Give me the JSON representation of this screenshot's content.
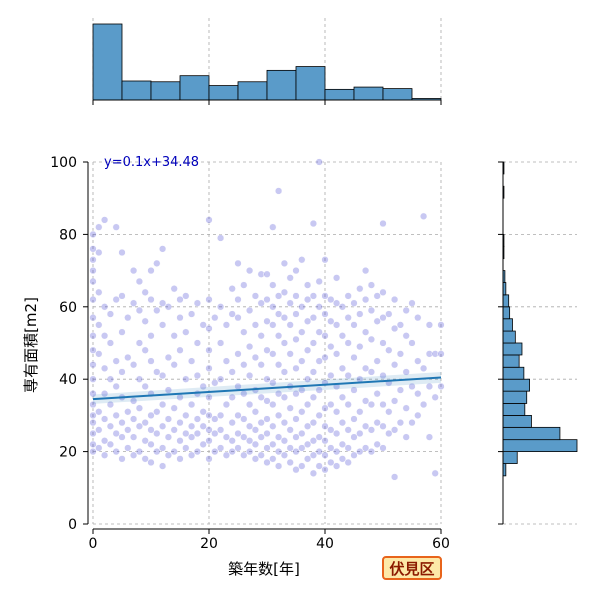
{
  "chart_data": {
    "type": "scatter",
    "title": "",
    "xlabel": "築年数[年]",
    "ylabel": "専有面積[m2]",
    "xlim": [
      -1,
      60
    ],
    "ylim": [
      0,
      100
    ],
    "xticks": [
      0,
      20,
      40,
      60
    ],
    "yticks": [
      0,
      20,
      40,
      60,
      80,
      100
    ],
    "grid": true,
    "annotation": "y=0.1x+34.48",
    "regression": {
      "slope": 0.1,
      "intercept": 34.48
    },
    "scatter_color": "#3a3ad0",
    "line_color": "#1f77b4",
    "hist_color": "#5a9bc9",
    "marginal_x_hist": {
      "bin_edges": [
        0,
        5,
        10,
        15,
        20,
        25,
        30,
        35,
        40,
        45,
        50,
        55,
        60
      ],
      "counts": [
        100,
        25,
        24,
        32,
        19,
        24,
        39,
        44,
        14,
        17,
        15,
        2
      ]
    },
    "marginal_y_hist": {
      "bin_edges": [
        0,
        3.3,
        6.7,
        10,
        13.3,
        16.7,
        20,
        23.3,
        26.7,
        30,
        33.3,
        36.7,
        40,
        43.3,
        46.7,
        50,
        53.3,
        56.7,
        60,
        63.3,
        66.7,
        70,
        73.3,
        76.7,
        80,
        83.3,
        86.7,
        90,
        93.3,
        96.7,
        100
      ],
      "counts": [
        0,
        0,
        0,
        0,
        3,
        15,
        78,
        60,
        30,
        23,
        25,
        28,
        22,
        17,
        20,
        13,
        10,
        7,
        6,
        3,
        2,
        0,
        1,
        1,
        0,
        0,
        0,
        1,
        0,
        1
      ]
    },
    "points": [
      [
        0,
        20
      ],
      [
        0,
        22
      ],
      [
        0,
        25
      ],
      [
        0,
        28
      ],
      [
        0,
        30
      ],
      [
        0,
        33
      ],
      [
        0,
        36
      ],
      [
        0,
        40
      ],
      [
        0,
        44
      ],
      [
        0,
        48
      ],
      [
        0,
        52
      ],
      [
        0,
        57
      ],
      [
        0,
        62
      ],
      [
        0,
        67
      ],
      [
        0,
        70
      ],
      [
        0,
        73
      ],
      [
        0,
        76
      ],
      [
        0,
        80
      ],
      [
        1,
        21
      ],
      [
        1,
        26
      ],
      [
        1,
        31
      ],
      [
        1,
        47
      ],
      [
        1,
        55
      ],
      [
        1,
        64
      ],
      [
        1,
        75
      ],
      [
        1,
        82
      ],
      [
        2,
        19
      ],
      [
        2,
        23
      ],
      [
        2,
        29
      ],
      [
        2,
        36
      ],
      [
        2,
        43
      ],
      [
        2,
        52
      ],
      [
        2,
        60
      ],
      [
        2,
        84
      ],
      [
        3,
        22
      ],
      [
        3,
        27
      ],
      [
        3,
        33
      ],
      [
        3,
        40
      ],
      [
        3,
        50
      ],
      [
        3,
        58
      ],
      [
        4,
        20
      ],
      [
        4,
        25
      ],
      [
        4,
        30
      ],
      [
        4,
        38
      ],
      [
        4,
        45
      ],
      [
        4,
        62
      ],
      [
        4,
        82
      ],
      [
        5,
        18
      ],
      [
        5,
        24
      ],
      [
        5,
        28
      ],
      [
        5,
        35
      ],
      [
        5,
        42
      ],
      [
        5,
        53
      ],
      [
        5,
        63
      ],
      [
        5,
        75
      ],
      [
        6,
        21
      ],
      [
        6,
        26
      ],
      [
        6,
        31
      ],
      [
        6,
        46
      ],
      [
        6,
        57
      ],
      [
        7,
        19
      ],
      [
        7,
        24
      ],
      [
        7,
        29
      ],
      [
        7,
        34
      ],
      [
        7,
        44
      ],
      [
        7,
        61
      ],
      [
        7,
        70
      ],
      [
        8,
        20
      ],
      [
        8,
        27
      ],
      [
        8,
        32
      ],
      [
        8,
        40
      ],
      [
        8,
        50
      ],
      [
        8,
        59
      ],
      [
        8,
        67
      ],
      [
        9,
        18
      ],
      [
        9,
        23
      ],
      [
        9,
        28
      ],
      [
        9,
        38
      ],
      [
        9,
        48
      ],
      [
        9,
        56
      ],
      [
        9,
        64
      ],
      [
        10,
        17
      ],
      [
        10,
        22
      ],
      [
        10,
        26
      ],
      [
        10,
        30
      ],
      [
        10,
        36
      ],
      [
        10,
        45
      ],
      [
        10,
        52
      ],
      [
        10,
        62
      ],
      [
        10,
        70
      ],
      [
        11,
        20
      ],
      [
        11,
        25
      ],
      [
        11,
        31
      ],
      [
        11,
        42
      ],
      [
        11,
        59
      ],
      [
        11,
        72
      ],
      [
        12,
        16
      ],
      [
        12,
        21
      ],
      [
        12,
        27
      ],
      [
        12,
        33
      ],
      [
        12,
        41
      ],
      [
        12,
        55
      ],
      [
        12,
        61
      ],
      [
        12,
        76
      ],
      [
        13,
        19
      ],
      [
        13,
        24
      ],
      [
        13,
        29
      ],
      [
        13,
        37
      ],
      [
        13,
        46
      ],
      [
        13,
        60
      ],
      [
        14,
        20
      ],
      [
        14,
        26
      ],
      [
        14,
        32
      ],
      [
        14,
        44
      ],
      [
        14,
        52
      ],
      [
        14,
        65
      ],
      [
        15,
        18
      ],
      [
        15,
        23
      ],
      [
        15,
        28
      ],
      [
        15,
        35
      ],
      [
        15,
        48
      ],
      [
        15,
        57
      ],
      [
        15,
        62
      ],
      [
        16,
        21
      ],
      [
        16,
        25
      ],
      [
        16,
        30
      ],
      [
        16,
        40
      ],
      [
        16,
        53
      ],
      [
        16,
        63
      ],
      [
        17,
        19
      ],
      [
        17,
        24
      ],
      [
        17,
        27
      ],
      [
        17,
        33
      ],
      [
        17,
        45
      ],
      [
        17,
        58
      ],
      [
        18,
        20
      ],
      [
        18,
        25
      ],
      [
        18,
        29
      ],
      [
        18,
        36
      ],
      [
        18,
        41
      ],
      [
        18,
        50
      ],
      [
        18,
        61
      ],
      [
        19,
        22
      ],
      [
        19,
        27
      ],
      [
        19,
        31
      ],
      [
        19,
        38
      ],
      [
        19,
        55
      ],
      [
        20,
        18
      ],
      [
        20,
        23
      ],
      [
        20,
        26
      ],
      [
        20,
        30
      ],
      [
        20,
        35
      ],
      [
        20,
        43
      ],
      [
        20,
        48
      ],
      [
        20,
        54
      ],
      [
        20,
        62
      ],
      [
        20,
        84
      ],
      [
        21,
        20
      ],
      [
        21,
        25
      ],
      [
        21,
        29
      ],
      [
        21,
        39
      ],
      [
        21,
        57
      ],
      [
        22,
        21
      ],
      [
        22,
        26
      ],
      [
        22,
        30
      ],
      [
        22,
        40
      ],
      [
        22,
        50
      ],
      [
        22,
        60
      ],
      [
        22,
        79
      ],
      [
        23,
        19
      ],
      [
        23,
        24
      ],
      [
        23,
        33
      ],
      [
        23,
        45
      ],
      [
        23,
        55
      ],
      [
        24,
        20
      ],
      [
        24,
        23
      ],
      [
        24,
        28
      ],
      [
        24,
        35
      ],
      [
        24,
        42
      ],
      [
        24,
        58
      ],
      [
        24,
        65
      ],
      [
        25,
        21
      ],
      [
        25,
        25
      ],
      [
        25,
        30
      ],
      [
        25,
        38
      ],
      [
        25,
        47
      ],
      [
        25,
        57
      ],
      [
        25,
        62
      ],
      [
        25,
        72
      ],
      [
        26,
        19
      ],
      [
        26,
        24
      ],
      [
        26,
        29
      ],
      [
        26,
        36
      ],
      [
        26,
        44
      ],
      [
        26,
        53
      ],
      [
        26,
        66
      ],
      [
        27,
        20
      ],
      [
        27,
        23
      ],
      [
        27,
        27
      ],
      [
        27,
        33
      ],
      [
        27,
        41
      ],
      [
        27,
        49
      ],
      [
        27,
        59
      ],
      [
        27,
        70
      ],
      [
        28,
        18
      ],
      [
        28,
        22
      ],
      [
        28,
        26
      ],
      [
        28,
        31
      ],
      [
        28,
        37
      ],
      [
        28,
        46
      ],
      [
        28,
        55
      ],
      [
        28,
        63
      ],
      [
        29,
        19
      ],
      [
        29,
        24
      ],
      [
        29,
        28
      ],
      [
        29,
        35
      ],
      [
        29,
        44
      ],
      [
        29,
        52
      ],
      [
        29,
        61
      ],
      [
        29,
        69
      ],
      [
        30,
        17
      ],
      [
        30,
        21
      ],
      [
        30,
        25
      ],
      [
        30,
        29
      ],
      [
        30,
        34
      ],
      [
        30,
        40
      ],
      [
        30,
        48
      ],
      [
        30,
        56
      ],
      [
        30,
        62
      ],
      [
        30,
        69
      ],
      [
        31,
        18
      ],
      [
        31,
        22
      ],
      [
        31,
        27
      ],
      [
        31,
        33
      ],
      [
        31,
        39
      ],
      [
        31,
        47
      ],
      [
        31,
        55
      ],
      [
        31,
        60
      ],
      [
        31,
        66
      ],
      [
        31,
        82
      ],
      [
        32,
        16
      ],
      [
        32,
        20
      ],
      [
        32,
        24
      ],
      [
        32,
        30
      ],
      [
        32,
        36
      ],
      [
        32,
        44
      ],
      [
        32,
        52
      ],
      [
        32,
        58
      ],
      [
        32,
        63
      ],
      [
        32,
        92
      ],
      [
        33,
        19
      ],
      [
        33,
        23
      ],
      [
        33,
        28
      ],
      [
        33,
        35
      ],
      [
        33,
        42
      ],
      [
        33,
        50
      ],
      [
        33,
        57
      ],
      [
        33,
        64
      ],
      [
        33,
        72
      ],
      [
        34,
        17
      ],
      [
        34,
        21
      ],
      [
        34,
        26
      ],
      [
        34,
        32
      ],
      [
        34,
        38
      ],
      [
        34,
        47
      ],
      [
        34,
        55
      ],
      [
        34,
        61
      ],
      [
        34,
        68
      ],
      [
        35,
        15
      ],
      [
        35,
        20
      ],
      [
        35,
        24
      ],
      [
        35,
        29
      ],
      [
        35,
        36
      ],
      [
        35,
        43
      ],
      [
        35,
        51
      ],
      [
        35,
        58
      ],
      [
        35,
        63
      ],
      [
        35,
        70
      ],
      [
        36,
        16
      ],
      [
        36,
        21
      ],
      [
        36,
        25
      ],
      [
        36,
        31
      ],
      [
        36,
        37
      ],
      [
        36,
        45
      ],
      [
        36,
        53
      ],
      [
        36,
        60
      ],
      [
        36,
        73
      ],
      [
        37,
        18
      ],
      [
        37,
        22
      ],
      [
        37,
        27
      ],
      [
        37,
        33
      ],
      [
        37,
        40
      ],
      [
        37,
        48
      ],
      [
        37,
        56
      ],
      [
        37,
        62
      ],
      [
        37,
        66
      ],
      [
        38,
        14
      ],
      [
        38,
        19
      ],
      [
        38,
        23
      ],
      [
        38,
        28
      ],
      [
        38,
        35
      ],
      [
        38,
        42
      ],
      [
        38,
        50
      ],
      [
        38,
        57
      ],
      [
        38,
        63
      ],
      [
        38,
        83
      ],
      [
        39,
        16
      ],
      [
        39,
        20
      ],
      [
        39,
        24
      ],
      [
        39,
        30
      ],
      [
        39,
        37
      ],
      [
        39,
        45
      ],
      [
        39,
        53
      ],
      [
        39,
        60
      ],
      [
        39,
        67
      ],
      [
        39,
        100
      ],
      [
        40,
        15
      ],
      [
        40,
        19
      ],
      [
        40,
        23
      ],
      [
        40,
        27
      ],
      [
        40,
        32
      ],
      [
        40,
        39
      ],
      [
        40,
        46
      ],
      [
        40,
        52
      ],
      [
        40,
        58
      ],
      [
        40,
        63
      ],
      [
        40,
        73
      ],
      [
        41,
        17
      ],
      [
        41,
        21
      ],
      [
        41,
        26
      ],
      [
        41,
        33
      ],
      [
        41,
        41
      ],
      [
        41,
        49
      ],
      [
        41,
        56
      ],
      [
        41,
        62
      ],
      [
        42,
        16
      ],
      [
        42,
        20
      ],
      [
        42,
        25
      ],
      [
        42,
        31
      ],
      [
        42,
        38
      ],
      [
        42,
        47
      ],
      [
        42,
        55
      ],
      [
        42,
        61
      ],
      [
        42,
        68
      ],
      [
        43,
        18
      ],
      [
        43,
        22
      ],
      [
        43,
        28
      ],
      [
        43,
        35
      ],
      [
        43,
        43
      ],
      [
        43,
        52
      ],
      [
        43,
        60
      ],
      [
        44,
        17
      ],
      [
        44,
        21
      ],
      [
        44,
        26
      ],
      [
        44,
        33
      ],
      [
        44,
        41
      ],
      [
        44,
        50
      ],
      [
        44,
        57
      ],
      [
        44,
        63
      ],
      [
        45,
        19
      ],
      [
        45,
        24
      ],
      [
        45,
        29
      ],
      [
        45,
        37
      ],
      [
        45,
        46
      ],
      [
        45,
        55
      ],
      [
        45,
        61
      ],
      [
        46,
        20
      ],
      [
        46,
        25
      ],
      [
        46,
        31
      ],
      [
        46,
        40
      ],
      [
        46,
        49
      ],
      [
        46,
        58
      ],
      [
        46,
        65
      ],
      [
        47,
        21
      ],
      [
        47,
        27
      ],
      [
        47,
        34
      ],
      [
        47,
        43
      ],
      [
        47,
        53
      ],
      [
        47,
        62
      ],
      [
        47,
        70
      ],
      [
        48,
        20
      ],
      [
        48,
        26
      ],
      [
        48,
        33
      ],
      [
        48,
        42
      ],
      [
        48,
        51
      ],
      [
        48,
        59
      ],
      [
        48,
        66
      ],
      [
        49,
        22
      ],
      [
        49,
        28
      ],
      [
        49,
        36
      ],
      [
        49,
        45
      ],
      [
        49,
        56
      ],
      [
        49,
        63
      ],
      [
        50,
        21
      ],
      [
        50,
        27
      ],
      [
        50,
        33
      ],
      [
        50,
        41
      ],
      [
        50,
        50
      ],
      [
        50,
        57
      ],
      [
        50,
        64
      ],
      [
        50,
        83
      ],
      [
        51,
        25
      ],
      [
        51,
        31
      ],
      [
        51,
        39
      ],
      [
        51,
        48
      ],
      [
        51,
        58
      ],
      [
        52,
        13
      ],
      [
        52,
        26
      ],
      [
        52,
        34
      ],
      [
        52,
        44
      ],
      [
        52,
        54
      ],
      [
        52,
        62
      ],
      [
        53,
        28
      ],
      [
        53,
        37
      ],
      [
        53,
        47
      ],
      [
        53,
        55
      ],
      [
        54,
        24
      ],
      [
        54,
        32
      ],
      [
        54,
        42
      ],
      [
        54,
        52
      ],
      [
        54,
        59
      ],
      [
        55,
        28
      ],
      [
        55,
        38
      ],
      [
        55,
        50
      ],
      [
        55,
        61
      ],
      [
        56,
        30
      ],
      [
        56,
        36
      ],
      [
        56,
        45
      ],
      [
        56,
        57
      ],
      [
        57,
        33
      ],
      [
        57,
        43
      ],
      [
        57,
        85
      ],
      [
        58,
        24
      ],
      [
        58,
        38
      ],
      [
        58,
        47
      ],
      [
        58,
        55
      ],
      [
        59,
        14
      ],
      [
        59,
        35
      ],
      [
        59,
        47
      ],
      [
        60,
        38
      ],
      [
        60,
        47
      ],
      [
        60,
        55
      ]
    ]
  },
  "badge": {
    "label": "伏見区"
  }
}
